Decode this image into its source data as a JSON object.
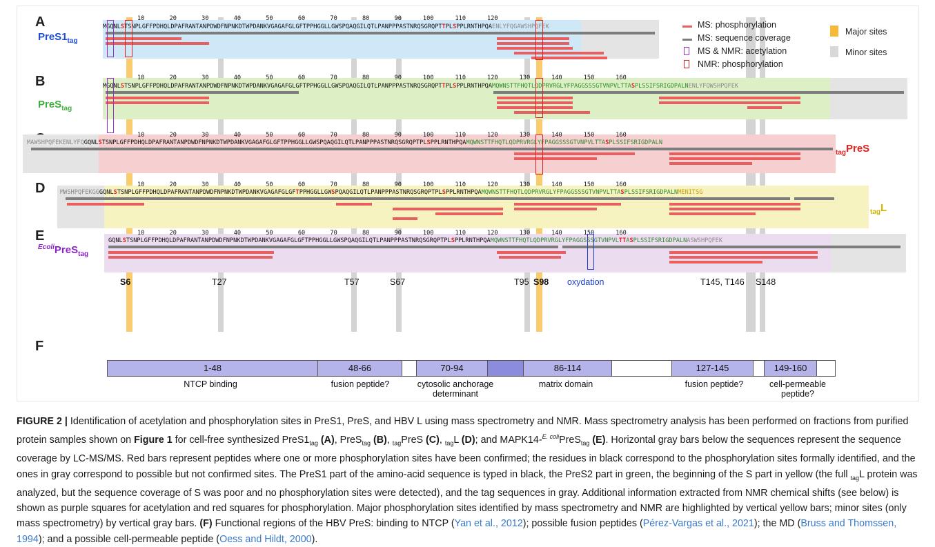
{
  "figure": {
    "panels": [
      {
        "letter": "A",
        "label_main": "PreS1",
        "label_sub": "tag",
        "label_pre": "",
        "label_color": "#1f4fd1",
        "bg": "#cfe8f7"
      },
      {
        "letter": "B",
        "label_main": "PreS",
        "label_sub": "tag",
        "label_pre": "",
        "label_color": "#3fae3f",
        "bg": "#ddefc4"
      },
      {
        "letter": "C",
        "label_main": "PreS",
        "label_sub": "",
        "label_pre": "tag",
        "label_color": "#e0201b",
        "bg": "#f6d0d0"
      },
      {
        "letter": "D",
        "label_main": "L",
        "label_sub": "",
        "label_pre": "tag",
        "label_color": "#d6b400",
        "bg": "#f7f3c0"
      },
      {
        "letter": "E",
        "label_main": "PreS",
        "label_sub": "tag",
        "label_pre": "Ecoli",
        "label_color": "#8b22c9",
        "bg": "#ecdcf0"
      }
    ],
    "ruler_ticks": [
      "10",
      "20",
      "30",
      "40",
      "50",
      "60",
      "70",
      "80",
      "90",
      "100",
      "110",
      "120",
      "130",
      "140",
      "150",
      "160"
    ],
    "sequences": {
      "A": {
        "tag_n": "",
        "pres1_pre": "MGQNL",
        "pres1_s6": "S",
        "pres1_post": "TSNPLGFFPDHQLDPAFRANTANPDWDFNPNKDTWPDANKVGAGAFGLGFTPPHGGLLGWSPQAQGILQTLPANPPPASTNRQSGRQPT",
        "t95": "T",
        "pl": "PL",
        "s98": "S",
        "rest1": "PPLRNTHPQA",
        "pres2": "",
        "s_part": "",
        "tag_c": "ENLYFQGAWSHPQFEK"
      },
      "B": {
        "tag_n": "",
        "pres1_pre": "MGQNL",
        "pres1_s6": "S",
        "pres1_post": "TSNPLGFFPDHQLDPAFRANTANPDWDFNPNKDTWPDANKVGAGAFGLGFTPPHGGLLGWSPQAQGILQTLPANPPPASTNRQSGRQPT",
        "t95": "T",
        "pl": "PL",
        "s98": "S",
        "rest1": "PPLRNTHPQA",
        "pres2": "MQWNSTTFHQTLQDPRVRGLYFPAGGSSSGTVNPVLTTA",
        "s148": "S",
        "pres2b": "PLSSIFSRIGDPALN",
        "s_part": "",
        "tag_c": "ENLYFQWSHPQFEK"
      },
      "C": {
        "tag_n": "MAWSHPQFEKENLYFQ",
        "pres1_pre": "GQNL",
        "pres1_s6": "S",
        "pres1_post": "TSNPLGFFPDHQLDPAFRANTANPDWDFNPNKDTWPDANKVGAGAFGLGFTPPHGGLLGWSPQAQGILQTLPANPPPASTNRQSGRQPTPL",
        "s98": "S",
        "rest1": "PPLRNTHPQA",
        "pres2": "MQWNSTTFHQTLQDPRVRGLYFPAGGSSSGTVNPVLTTA",
        "s148": "S",
        "pres2b": "PLSSIFSRIGDPALN",
        "s_part": "",
        "tag_c": ""
      },
      "D": {
        "tag_n": "MWSHPQFEKGG",
        "pres1_pre": "GQNL",
        "pres1_s6": "S",
        "pres1_post": "TSNPLGFFPDHQLDPAFRANTANPDWDFNPNKDTWPDANKVGAGAFGLGF",
        "t57": "T",
        "mid1": "PPHGGLLGW",
        "s67": "S",
        "mid2": "PQAQGILQTLPANPPPASTNRQSGRQPTPL",
        "s98": "S",
        "rest1": "PPLRNTHPQA",
        "pres2": "MQWNSTTFHQTLQDPRVRGLYFPAGGSSSGTVNPVLTTA",
        "s148": "S",
        "pres2b": "PLSSIFSRIGDPALN",
        "s_part": "MENITSG",
        "tag_c": ""
      },
      "E": {
        "tag_n": "",
        "pres1_pre": "GQNL",
        "pres1_s6": "S",
        "pres1_post": "TSNPLGFFPDHQLDPAFRANTANPDWDFNPNKDTWPDANKVGAGAFGLGFTPPHGGLLGWSPQAQGILQTLPANPPPASTNRQSGRQPTPL",
        "s98": "S",
        "rest1": "PPLRNTHPQA",
        "pres2": "MQWNSTTFHQTLQDPRVRGLYFPAGGSSSGTVNPVL",
        "t145": "TT",
        "pres2a": "A",
        "s148": "S",
        "pres2b": "PLSSIFSRIGDPALN",
        "s_part": "",
        "tag_c": "ASWSHPQFEK"
      }
    },
    "site_labels": [
      "S6",
      "T27",
      "T57",
      "S67",
      "T95",
      "S98",
      "oxydation",
      "T145, T146",
      "S148"
    ],
    "legend": {
      "ms_phospho": "MS: phosphorylation",
      "ms_coverage": "MS: sequence coverage",
      "ms_nmr_acetyl": "MS & NMR: acetylation",
      "nmr_phospho": "NMR: phosphorylation",
      "major": "Major sites",
      "minor": "Minor sites"
    },
    "panel_f": {
      "letter": "F",
      "regions": [
        {
          "range": "1-48",
          "label": "NTCP binding"
        },
        {
          "range": "48-66",
          "label": "fusion peptide?"
        },
        {
          "range": "70-94",
          "label": "cytosolic anchorage determinant"
        },
        {
          "range": "86-114",
          "label": "matrix domain"
        },
        {
          "range": "127-145",
          "label": "fusion peptide?"
        },
        {
          "range": "149-160",
          "label": "cell-permeable peptide?"
        }
      ]
    },
    "colors": {
      "phospho_bar": "#e95e5e",
      "coverage_bar": "#7d7d7d",
      "major_site": "#f7ba36",
      "minor_site": "#b0b0b0",
      "acetyl_box": "#9b30c9",
      "nmr_box": "#e0201b",
      "region_fill": "#b4b4ea",
      "region_overlap": "#8c8cdc"
    }
  },
  "caption": {
    "fig_label": "FIGURE 2 |",
    "p1": "Identification of acetylation and phosphorylation sites in PreS1, PreS, and HBV L using mass spectrometry and NMR. Mass spectrometry analysis has been performed on fractions from purified protein samples shown on ",
    "fig1": "Figure 1",
    "p2": " for cell-free synthesized PreS1",
    "tag": "tag",
    "a": "(A)",
    "p3": ", PreS",
    "b": "(B)",
    "p4": ", ",
    "p5": "PreS ",
    "c": "(C)",
    "p6": ", ",
    "p7": "L ",
    "d": "(D)",
    "p8": "; and MAPK14-",
    "ecoli": "E. coli",
    "p9": "PreS",
    "e": "(E)",
    "p10": ". Horizontal gray bars below the sequences represent the sequence coverage by LC-MS/MS. Red bars represent peptides where one or more phosphorylation sites have been confirmed; the residues in black correspond to the phosphorylation sites formally identified, and the ones in gray correspond to possible but not confirmed sites. The PreS1 part of the amino-acid sequence is typed in black, the PreS2 part in green, the beginning of the S part in yellow (the full ",
    "p11": "L protein was analyzed, but the sequence coverage of S was poor and no phosphorylation sites were detected), and the tag sequences in gray. Additional information extracted from NMR chemical shifts (see below) is shown as purple squares for acetylation and red squares for phosphorylation. Major phosphorylation sites identified by mass spectrometry and NMR are highlighted by vertical yellow bars; minor sites (only mass spectrometry) by vertical gray bars. ",
    "f": "(F)",
    "p12": " Functional regions of the HBV PreS: binding to NTCP (",
    "cite1": "Yan et al., 2012",
    "p13": "); possible fusion peptides (",
    "cite2": "Pérez-Vargas et al., 2021",
    "p14": "); the MD (",
    "cite3": "Bruss and Thomssen, 1994",
    "p15": "); and a possible cell-permeable peptide (",
    "cite4": "Oess and Hildt, 2000",
    "p16": ")."
  }
}
